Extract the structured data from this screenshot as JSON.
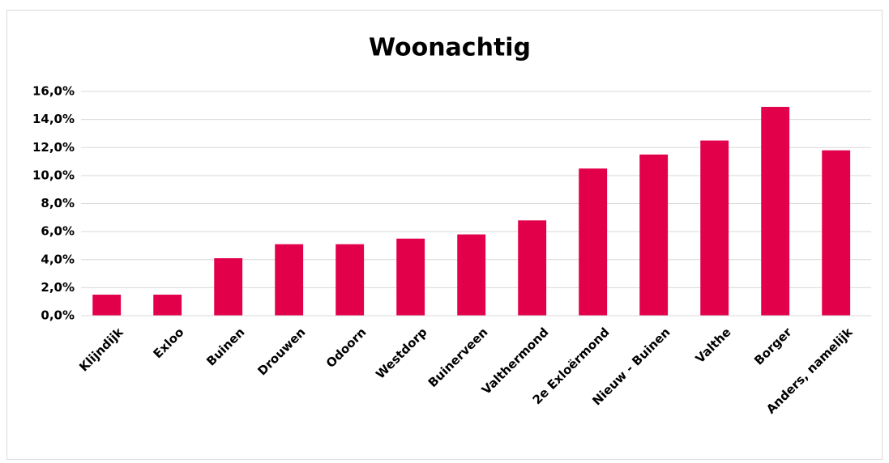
{
  "chart_data": {
    "type": "bar",
    "title": "Woonachtig",
    "categories": [
      "Klijndijk",
      "Exloo",
      "Buinen",
      "Drouwen",
      "Odoorn",
      "Westdorp",
      "Buinerveen",
      "Valthermond",
      "2e Exloërmond",
      "Nieuw - Buinen",
      "Valthe",
      "Borger",
      "Anders, namelijk"
    ],
    "values": [
      1.5,
      1.5,
      4.1,
      5.1,
      5.1,
      5.5,
      5.8,
      6.8,
      10.5,
      11.5,
      12.5,
      14.9,
      11.8
    ],
    "color": "#e2004b",
    "ylim": [
      0,
      16
    ],
    "yticks": [
      {
        "value": 0,
        "label": "0,0%"
      },
      {
        "value": 2,
        "label": "2,0%"
      },
      {
        "value": 4,
        "label": "4,0%"
      },
      {
        "value": 6,
        "label": "6,0%"
      },
      {
        "value": 8,
        "label": "8,0%"
      },
      {
        "value": 10,
        "label": "10,0%"
      },
      {
        "value": 12,
        "label": "12,0%"
      },
      {
        "value": 14,
        "label": "14,0%"
      },
      {
        "value": 16,
        "label": "16,0%"
      }
    ],
    "grid": true
  }
}
